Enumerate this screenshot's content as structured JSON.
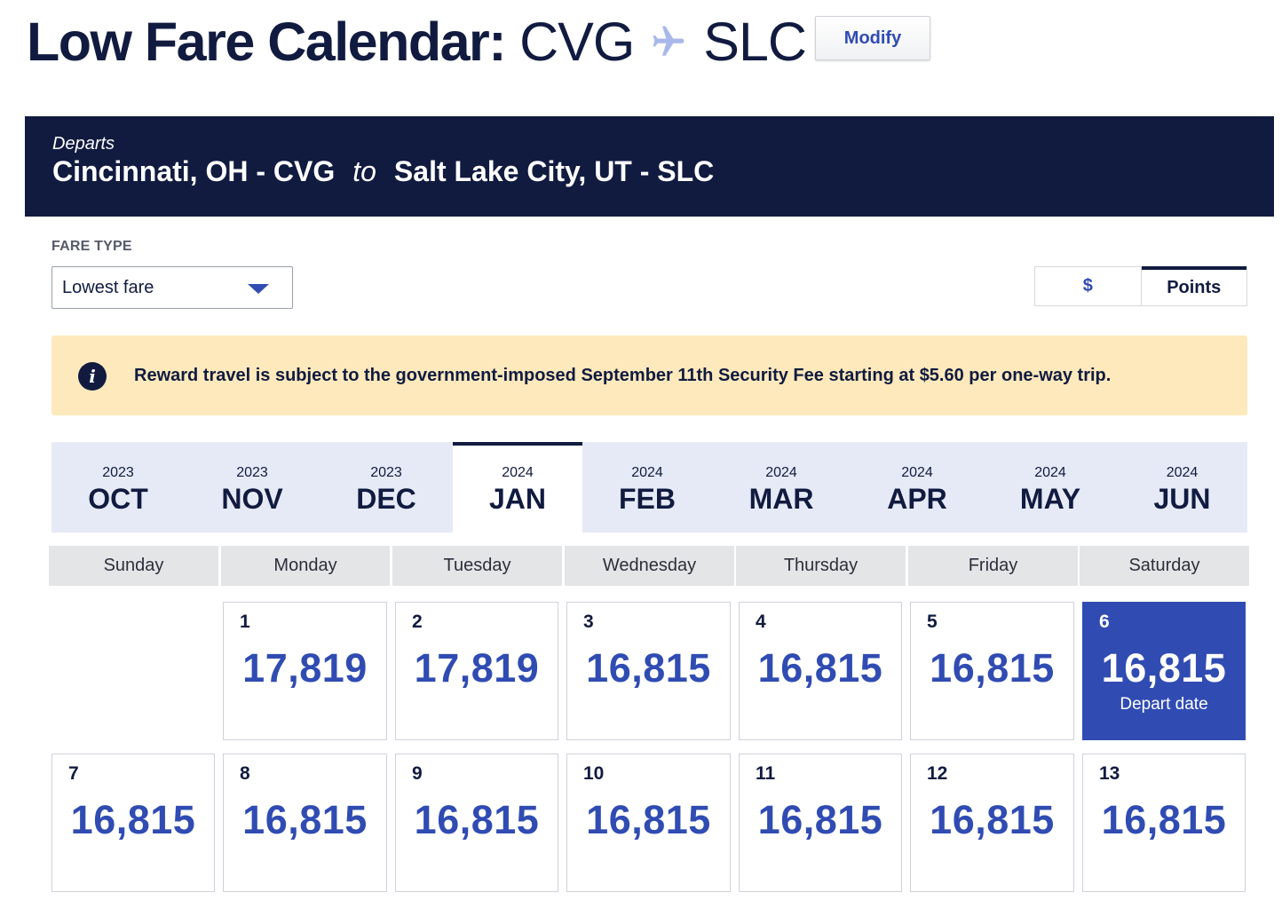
{
  "header": {
    "title": "Low Fare Calendar:",
    "origin_code": "CVG",
    "destination_code": "SLC",
    "plane_icon": "plane-icon",
    "modify_label": "Modify"
  },
  "banner": {
    "departs_label": "Departs",
    "origin": "Cincinnati, OH - CVG",
    "to_label": "to",
    "destination": "Salt Lake City, UT - SLC"
  },
  "fare_type": {
    "label": "FARE TYPE",
    "selected": "Lowest fare"
  },
  "currency_toggle": {
    "dollar_label": "$",
    "points_label": "Points",
    "active": "Points"
  },
  "notice": {
    "icon": "info-icon",
    "text": "Reward travel is subject to the government-imposed September 11th Security Fee starting at $5.60 per one-way trip."
  },
  "months": [
    {
      "year": "2023",
      "name": "OCT"
    },
    {
      "year": "2023",
      "name": "NOV"
    },
    {
      "year": "2023",
      "name": "DEC"
    },
    {
      "year": "2024",
      "name": "JAN",
      "active": true
    },
    {
      "year": "2024",
      "name": "FEB"
    },
    {
      "year": "2024",
      "name": "MAR"
    },
    {
      "year": "2024",
      "name": "APR"
    },
    {
      "year": "2024",
      "name": "MAY"
    },
    {
      "year": "2024",
      "name": "JUN"
    }
  ],
  "weekdays": [
    "Sunday",
    "Monday",
    "Tuesday",
    "Wednesday",
    "Thursday",
    "Friday",
    "Saturday"
  ],
  "days": [
    {
      "day": "1",
      "price": "17,819"
    },
    {
      "day": "2",
      "price": "17,819"
    },
    {
      "day": "3",
      "price": "16,815"
    },
    {
      "day": "4",
      "price": "16,815"
    },
    {
      "day": "5",
      "price": "16,815"
    },
    {
      "day": "6",
      "price": "16,815",
      "selected": true,
      "sub": "Depart date"
    },
    {
      "day": "7",
      "price": "16,815"
    },
    {
      "day": "8",
      "price": "16,815"
    },
    {
      "day": "9",
      "price": "16,815"
    },
    {
      "day": "10",
      "price": "16,815"
    },
    {
      "day": "11",
      "price": "16,815"
    },
    {
      "day": "12",
      "price": "16,815"
    },
    {
      "day": "13",
      "price": "16,815"
    }
  ],
  "colors": {
    "navy": "#111b40",
    "accent_blue": "#304cb2",
    "notice_bg": "#fde9bc",
    "month_bar_bg": "#e6eaf6"
  }
}
